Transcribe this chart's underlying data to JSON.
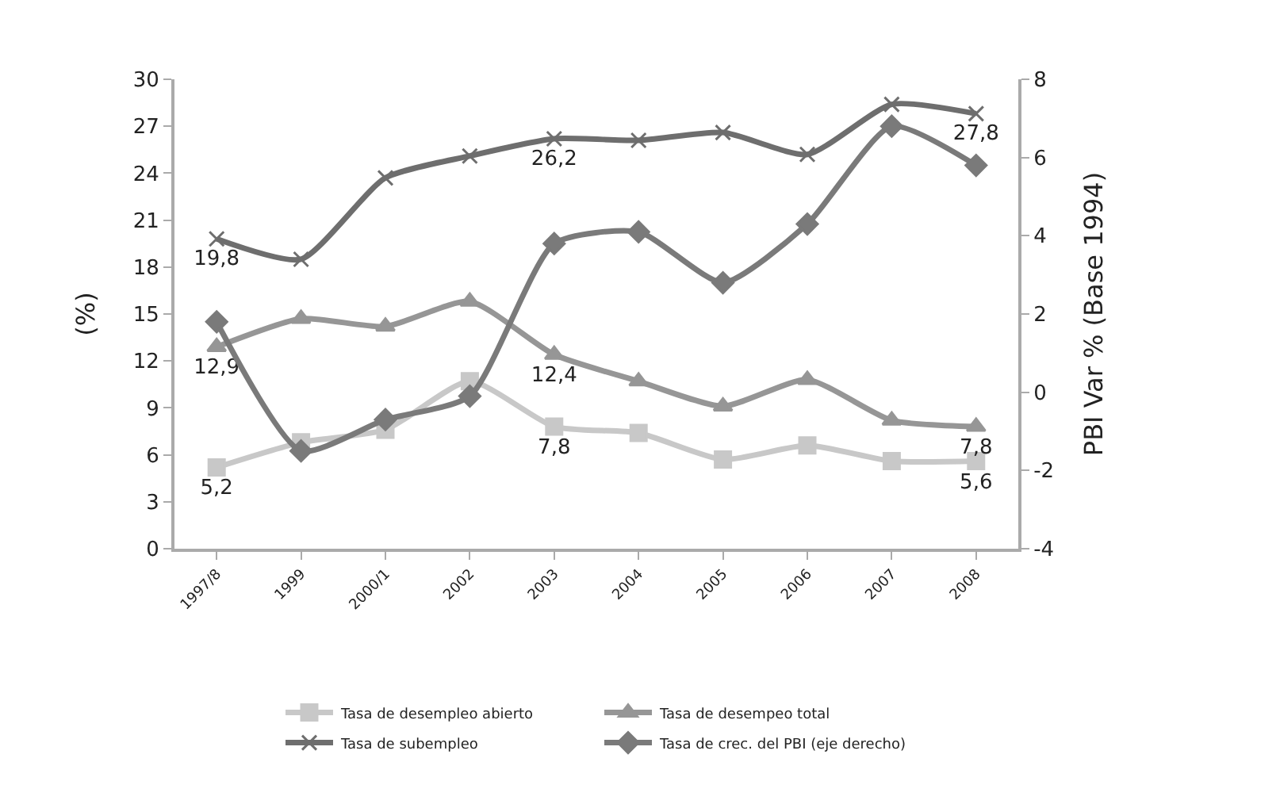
{
  "chart_data": {
    "type": "line",
    "ylabel": "(%)",
    "y2label": "PBI Var % (Base 1994)",
    "categories": [
      "1997/8",
      "1999",
      "2000/1",
      "2002",
      "2003",
      "2004",
      "2005",
      "2006",
      "2007",
      "2008"
    ],
    "ylim": [
      0,
      30
    ],
    "yticks": [
      0,
      3,
      6,
      9,
      12,
      15,
      18,
      21,
      24,
      27,
      30
    ],
    "y2lim": [
      -4,
      8
    ],
    "y2ticks": [
      -4,
      -2,
      0,
      2,
      4,
      6,
      8
    ],
    "legend": "bottom",
    "line_style": "solid",
    "series": [
      {
        "name": "Tasa de desempleo abierto",
        "color": "#c8c8c8",
        "marker": "square",
        "values": [
          5.2,
          6.8,
          7.6,
          10.7,
          7.8,
          7.4,
          5.7,
          6.6,
          5.6,
          5.6
        ],
        "value_labels": [
          "5,2",
          null,
          null,
          null,
          "7,8",
          null,
          null,
          null,
          null,
          "5,6"
        ]
      },
      {
        "name": "Tasa de desempeo total",
        "color": "#969696",
        "marker": "triangle",
        "values": [
          12.9,
          14.7,
          14.2,
          15.8,
          12.4,
          10.7,
          9.1,
          10.8,
          8.2,
          7.8
        ],
        "value_labels": [
          "12,9",
          null,
          null,
          null,
          "12,4",
          null,
          null,
          null,
          null,
          "7,8"
        ]
      },
      {
        "name": "Tasa de subempleo",
        "color": "#6e6e6e",
        "marker": "cross",
        "values": [
          19.8,
          18.5,
          23.7,
          25.1,
          26.2,
          26.1,
          26.6,
          25.2,
          28.4,
          27.8
        ],
        "value_labels": [
          "19,8",
          null,
          null,
          null,
          "26,2",
          null,
          null,
          null,
          null,
          "27,8"
        ]
      },
      {
        "name": "Tasa de crec. del PBI (eje derecho)",
        "color": "#7a7a7a",
        "marker": "diamond",
        "axis": "y2",
        "values": [
          1.8,
          -1.5,
          -0.7,
          -0.1,
          3.8,
          4.1,
          2.8,
          4.3,
          6.8,
          5.8
        ]
      }
    ]
  }
}
